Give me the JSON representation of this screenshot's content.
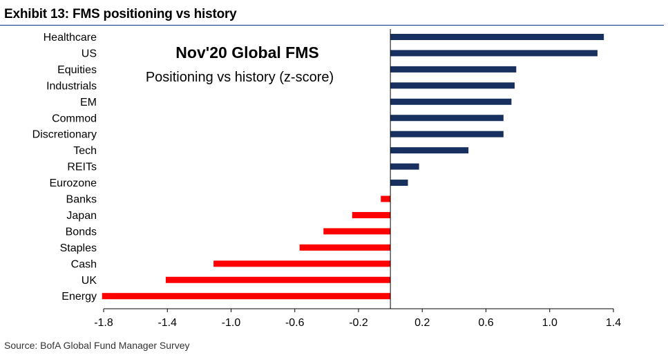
{
  "exhibit_title": "Exhibit 13: FMS positioning vs history",
  "source": "Source: BofA Global Fund Manager Survey",
  "colors": {
    "positive": "#17305f",
    "negative": "#ff0000",
    "title_rule": "#0a2a8c",
    "axis": "#000000"
  },
  "chart_data": {
    "type": "bar",
    "orientation": "horizontal",
    "title": "Nov'20 Global FMS",
    "subtitle": "Positioning vs history (z-score)",
    "categories": [
      "Healthcare",
      "US",
      "Equities",
      "Industrials",
      "EM",
      "Commod",
      "Discretionary",
      "Tech",
      "REITs",
      "Eurozone",
      "Banks",
      "Japan",
      "Bonds",
      "Staples",
      "Cash",
      "UK",
      "Energy"
    ],
    "values": [
      1.34,
      1.3,
      0.79,
      0.78,
      0.76,
      0.71,
      0.71,
      0.49,
      0.18,
      0.11,
      -0.06,
      -0.24,
      -0.42,
      -0.57,
      -1.11,
      -1.41,
      -1.81
    ],
    "xlim": [
      -1.8,
      1.4
    ],
    "xticks": [
      -1.8,
      -1.4,
      -1.0,
      -0.6,
      -0.2,
      0.2,
      0.6,
      1.0,
      1.4
    ],
    "xtick_labels": [
      "-1.8",
      "-1.4",
      "-1.0",
      "-0.6",
      "-0.2",
      "0.2",
      "0.6",
      "1.0",
      "1.4"
    ],
    "grid": false,
    "legend": "none"
  }
}
